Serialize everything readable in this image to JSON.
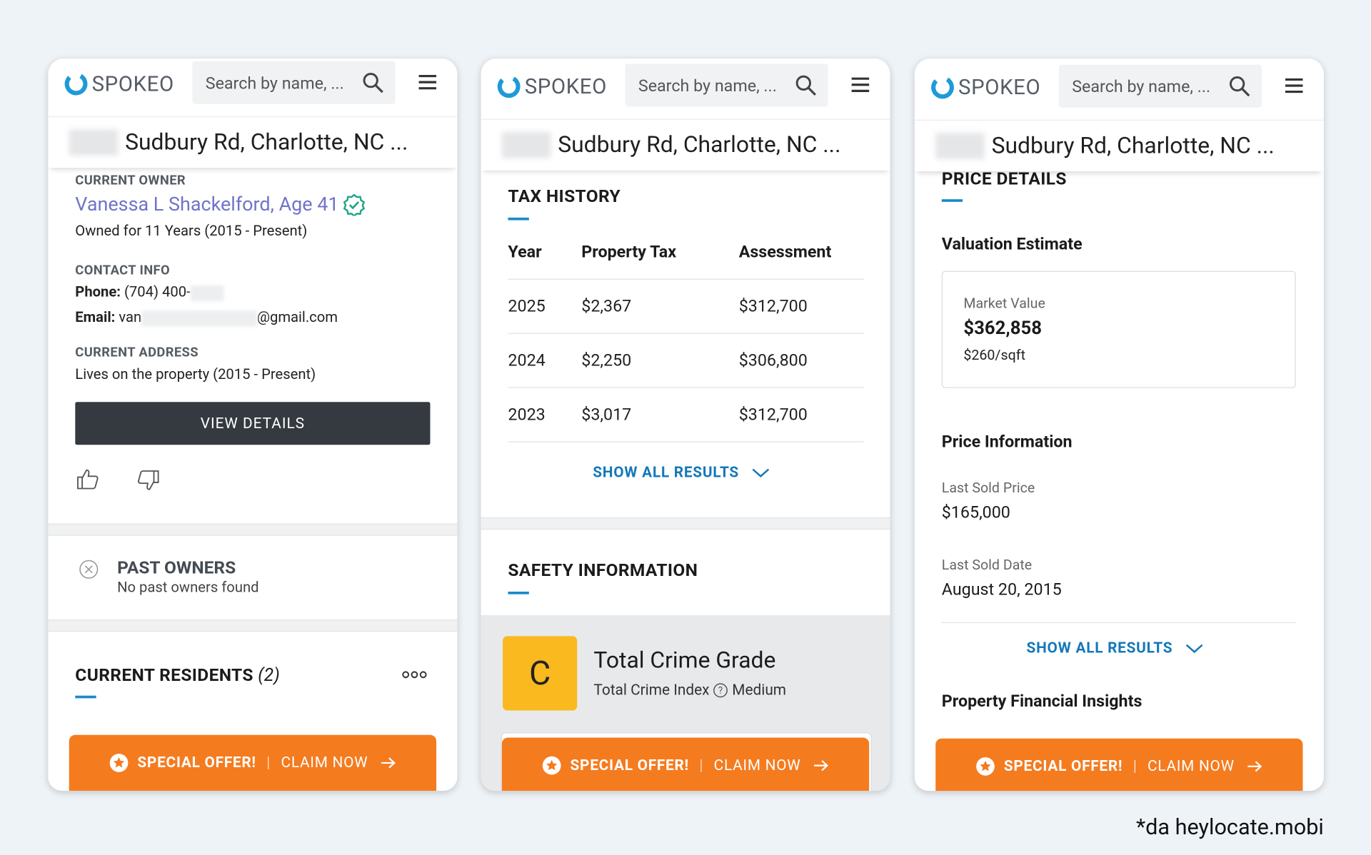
{
  "panels": [
    {
      "header": {
        "logo": "SPOKEO",
        "search_placeholder": "Search by name, ..."
      },
      "address": "Sudbury Rd, Charlotte, NC ...",
      "owner": {
        "label": "CURRENT OWNER",
        "name": "Vanessa L Shackelford, Age 41",
        "tenure": "Owned for 11 Years (2015 - Present)"
      },
      "contact": {
        "label": "CONTACT INFO",
        "phone_label": "Phone:",
        "phone": "(704) 400-",
        "email_label": "Email:",
        "email_start": "van",
        "email_end": "@gmail.com"
      },
      "current_address": {
        "label": "CURRENT ADDRESS",
        "text": "Lives on the property (2015 - Present)"
      },
      "button": "VIEW DETAILS",
      "past_owners": {
        "title": "PAST OWNERS",
        "text": "No past owners found"
      },
      "residents": {
        "title": "CURRENT RESIDENTS",
        "count": "(2)"
      },
      "offer": {
        "label": "SPECIAL OFFER!",
        "separator": "|",
        "action": "CLAIM NOW"
      }
    },
    {
      "header": {
        "logo": "SPOKEO",
        "search_placeholder": "Search by name, ..."
      },
      "address": "Sudbury Rd, Charlotte, NC ...",
      "tax_history": {
        "title": "TAX HISTORY",
        "columns": [
          "Year",
          "Property Tax",
          "Assessment"
        ],
        "rows": [
          [
            "2025",
            "$2,367",
            "$312,700"
          ],
          [
            "2024",
            "$2,250",
            "$306,800"
          ],
          [
            "2023",
            "$3,017",
            "$312,700"
          ]
        ],
        "show_all": "SHOW ALL RESULTS"
      },
      "safety": {
        "title": "SAFETY INFORMATION",
        "grade": "C",
        "grade_title": "Total Crime Grade",
        "index_label": "Total Crime Index",
        "index_value": "Medium"
      },
      "offer": {
        "label": "SPECIAL OFFER!",
        "separator": "|",
        "action": "CLAIM NOW"
      }
    },
    {
      "header": {
        "logo": "SPOKEO",
        "search_placeholder": "Search by name, ..."
      },
      "address": "Sudbury Rd, Charlotte, NC ...",
      "price_details": {
        "title": "PRICE DETAILS",
        "valuation_title": "Valuation Estimate",
        "market_label": "Market Value",
        "market_value": "$362,858",
        "per_sqft": "$260/sqft",
        "price_info_title": "Price Information",
        "last_sold_price_label": "Last Sold Price",
        "last_sold_price": "$165,000",
        "last_sold_date_label": "Last Sold Date",
        "last_sold_date": "August 20, 2015",
        "show_all": "SHOW ALL RESULTS",
        "insights_title": "Property Financial Insights"
      },
      "offer": {
        "label": "SPECIAL OFFER!",
        "separator": "|",
        "action": "CLAIM NOW"
      }
    }
  ],
  "footer_note": "*da heylocate.mobi"
}
